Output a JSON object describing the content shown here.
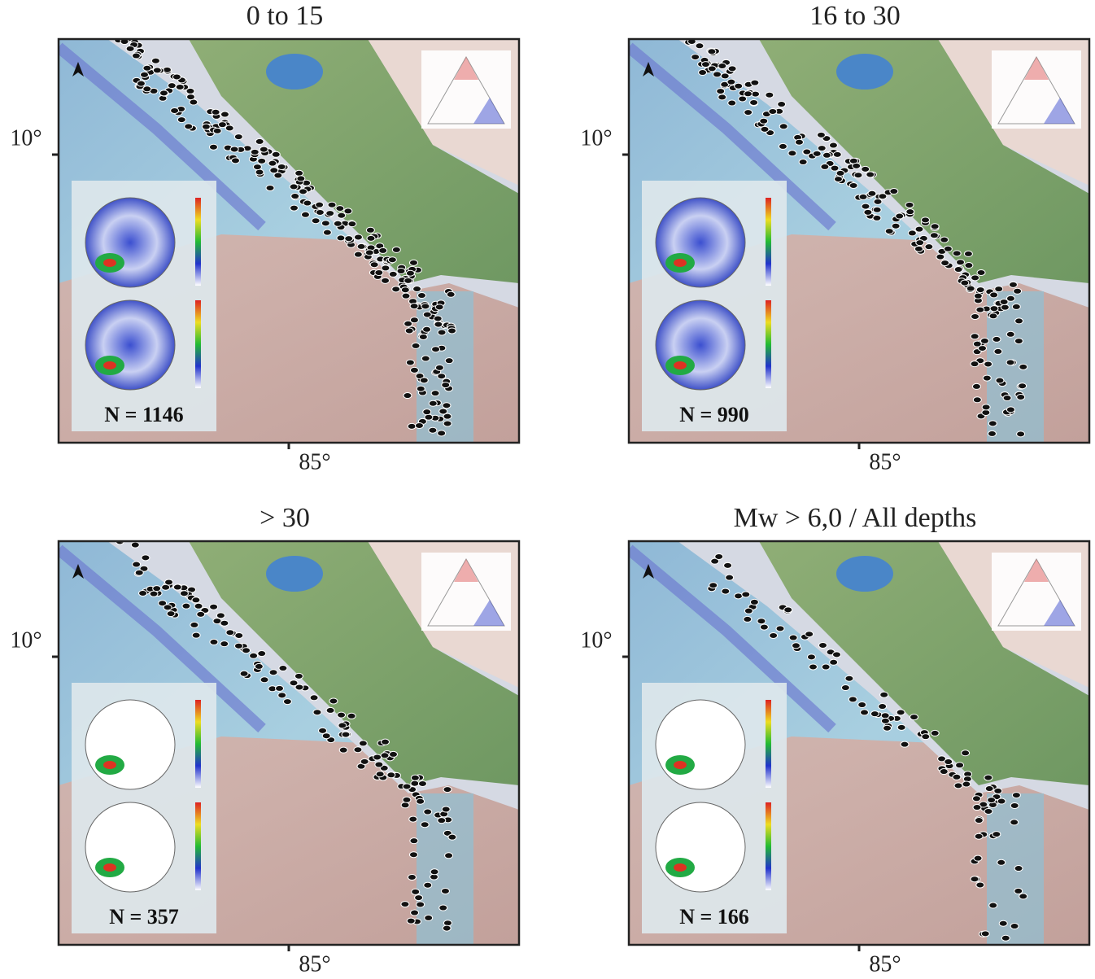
{
  "panels": [
    {
      "title": "0 to 15",
      "lat_label": "10°",
      "lon_label": "85°",
      "count_label": "N = 1146"
    },
    {
      "title": "16 to 30",
      "lat_label": "10°",
      "lon_label": "85°",
      "count_label": "N = 990"
    },
    {
      "title": "> 30",
      "lat_label": "10°",
      "lon_label": "85°",
      "count_label": "N = 357"
    },
    {
      "title": "Mw > 6,0 / All depths",
      "lat_label": "10°",
      "lon_label": "85°",
      "count_label": "N = 166"
    }
  ]
}
